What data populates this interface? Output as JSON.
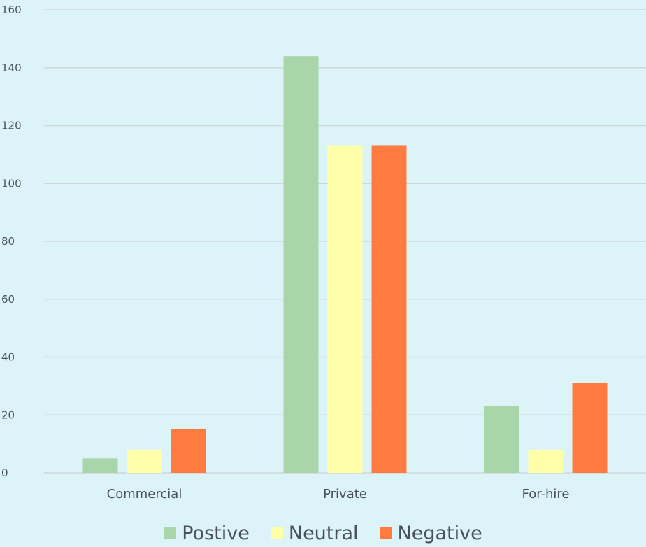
{
  "chart_data": {
    "type": "bar",
    "categories": [
      "Commercial",
      "Private",
      "For-hire"
    ],
    "series": [
      {
        "name": "Postive",
        "values": [
          5,
          144,
          23
        ],
        "color": "#a8d5a9"
      },
      {
        "name": "Neutral",
        "values": [
          8,
          113,
          8
        ],
        "color": "#ffffaa"
      },
      {
        "name": "Negative",
        "values": [
          15,
          113,
          31
        ],
        "color": "#ff7b3f"
      }
    ],
    "title": "",
    "xlabel": "",
    "ylabel": "",
    "ylim": [
      0,
      160
    ],
    "yticks": [
      "0",
      "20",
      "40",
      "60",
      "80",
      "100",
      "120",
      "140",
      "160"
    ],
    "grid": true,
    "legend_position": "bottom",
    "background_color": "#dcf4f8"
  }
}
